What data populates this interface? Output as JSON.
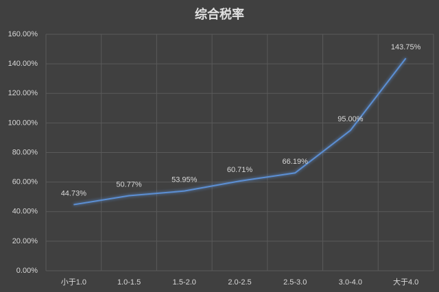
{
  "chart_data": {
    "type": "line",
    "title": "综合税率",
    "categories": [
      "小于1.0",
      "1.0-1.5",
      "1.5-2.0",
      "2.0-2.5",
      "2.5-3.0",
      "3.0-4.0",
      "大于4.0"
    ],
    "values": [
      44.73,
      50.77,
      53.95,
      60.71,
      66.19,
      95.0,
      143.75
    ],
    "value_labels": [
      "44.73%",
      "50.77%",
      "53.95%",
      "60.71%",
      "66.19%",
      "95.00%",
      "143.75%"
    ],
    "color": "#5b8fd4",
    "ylim": [
      0,
      160
    ],
    "yticks": [
      {
        "value": 0,
        "label": "0.00%"
      },
      {
        "value": 20,
        "label": "20.00%"
      },
      {
        "value": 40,
        "label": "40.00%"
      },
      {
        "value": 60,
        "label": "60.00%"
      },
      {
        "value": 80,
        "label": "80.00%"
      },
      {
        "value": 100,
        "label": "100.00%"
      },
      {
        "value": 120,
        "label": "120.00%"
      },
      {
        "value": 140,
        "label": "140.00%"
      },
      {
        "value": 160,
        "label": "160.00%"
      }
    ],
    "grid": true
  }
}
